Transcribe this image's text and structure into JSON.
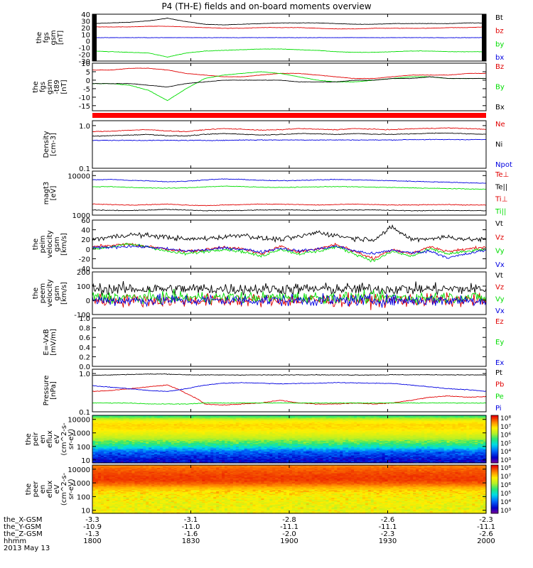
{
  "title": "P4 (TH-E) fields and on-board moments overview",
  "colors": {
    "black": "#000000",
    "red": "#e00000",
    "green": "#00dd00",
    "blue": "#0000e0"
  },
  "chart_data": [
    {
      "type": "line",
      "name": "panel-fgs-gsm",
      "ylabel": [
        "the",
        "fgs",
        "gsm",
        "[nT]"
      ],
      "yticks": [
        "40",
        "30",
        "20",
        "10",
        "0",
        "-10",
        "-20",
        "-30"
      ],
      "ylim": [
        -30,
        40
      ],
      "log": false,
      "series": [
        {
          "name": "Bt",
          "color": "black",
          "values": [
            26,
            27,
            28,
            30,
            34,
            29,
            25,
            24,
            25,
            26,
            27,
            27,
            27,
            26,
            25,
            25,
            26,
            26,
            26,
            26,
            27,
            27
          ]
        },
        {
          "name": "bz",
          "color": "red",
          "values": [
            21,
            21,
            21,
            22,
            22,
            21,
            20,
            19,
            19,
            20,
            20,
            20,
            19,
            18,
            18,
            19,
            19,
            19,
            19,
            20,
            20,
            21
          ]
        },
        {
          "name": "by",
          "color": "green",
          "values": [
            -15,
            -16,
            -17,
            -18,
            -24,
            -18,
            -15,
            -14,
            -13,
            -12,
            -12,
            -13,
            -14,
            -16,
            -17,
            -17,
            -16,
            -15,
            -15,
            -16,
            -16,
            -16
          ]
        },
        {
          "name": "bx",
          "color": "blue",
          "values": [
            5,
            5,
            5,
            5,
            5,
            5,
            5,
            5,
            5,
            5,
            5,
            5,
            5,
            5,
            5,
            5,
            5,
            5,
            5,
            5,
            5,
            5
          ]
        }
      ],
      "legend": [
        "Bt",
        "bz",
        "by",
        "bx"
      ]
    },
    {
      "type": "line",
      "name": "panel-fgs-gsm-t89",
      "ylabel": [
        "the",
        "fgs",
        "gsm",
        "-t89",
        "[nT]"
      ],
      "yticks": [
        "10",
        "5",
        "0",
        "-5",
        "-10",
        "-15"
      ],
      "ylim": [
        -18,
        10
      ],
      "log": false,
      "series": [
        {
          "name": "Bz",
          "color": "red",
          "values": [
            6,
            6,
            7,
            7,
            6,
            4,
            3,
            2,
            2,
            3,
            4,
            4,
            3,
            2,
            1,
            1,
            2,
            3,
            3,
            3,
            4,
            4
          ]
        },
        {
          "name": "By",
          "color": "green",
          "values": [
            -2,
            -2,
            -3,
            -6,
            -12,
            -5,
            1,
            3,
            4,
            5,
            4,
            2,
            0,
            -1,
            -1,
            0,
            1,
            2,
            2,
            1,
            1,
            1
          ]
        },
        {
          "name": "Bx",
          "color": "black",
          "values": [
            -2,
            -2,
            -2,
            -3,
            -4,
            -2,
            -1,
            0,
            0,
            0,
            0,
            -1,
            -1,
            -1,
            0,
            0,
            1,
            1,
            2,
            1,
            1,
            1
          ]
        }
      ],
      "legend": [
        "Bz",
        "By",
        "Bx"
      ]
    },
    {
      "type": "line",
      "name": "panel-density",
      "ylabel": [
        "Density",
        "[cm-3]"
      ],
      "yticks": [
        "1.0",
        "0.1"
      ],
      "ylim": [
        0.1,
        1.3
      ],
      "log": true,
      "series": [
        {
          "name": "Ne",
          "color": "red",
          "values": [
            0.72,
            0.74,
            0.78,
            0.8,
            0.75,
            0.72,
            0.8,
            0.85,
            0.82,
            0.78,
            0.8,
            0.85,
            0.82,
            0.8,
            0.85,
            0.82,
            0.8,
            0.84,
            0.86,
            0.88,
            0.85,
            0.82
          ]
        },
        {
          "name": "Ni",
          "color": "black",
          "values": [
            0.56,
            0.58,
            0.6,
            0.62,
            0.58,
            0.57,
            0.62,
            0.65,
            0.63,
            0.6,
            0.62,
            0.65,
            0.64,
            0.62,
            0.65,
            0.63,
            0.62,
            0.64,
            0.66,
            0.67,
            0.64,
            0.63
          ]
        },
        {
          "name": "Npot",
          "color": "blue",
          "values": [
            0.45,
            0.45,
            0.45,
            0.45,
            0.45,
            0.45,
            0.45,
            0.45,
            0.46,
            0.46,
            0.46,
            0.46,
            0.46,
            0.46,
            0.46,
            0.46,
            0.46,
            0.47,
            0.47,
            0.47,
            0.47,
            0.47
          ]
        }
      ],
      "legend": [
        "Ne",
        "Ni",
        "Npot"
      ]
    },
    {
      "type": "line",
      "name": "panel-temperature",
      "ylabel": [
        "magt3",
        "[eV]"
      ],
      "yticks": [
        "10000",
        "1000"
      ],
      "ylim": [
        1000,
        13000
      ],
      "log": true,
      "series": [
        {
          "name": "Te⊥",
          "color": "red",
          "values": [
            1900,
            1850,
            1800,
            1850,
            1900,
            1800,
            1750,
            1800,
            1850,
            1900,
            1900,
            1850,
            1800,
            1850,
            1900,
            1850,
            1800,
            1800,
            1850,
            1850,
            1800,
            1800
          ]
        },
        {
          "name": "Te||",
          "color": "black",
          "values": [
            1350,
            1320,
            1300,
            1350,
            1400,
            1350,
            1300,
            1300,
            1320,
            1350,
            1360,
            1340,
            1320,
            1340,
            1360,
            1350,
            1320,
            1300,
            1300,
            1320,
            1300,
            1300
          ]
        },
        {
          "name": "Ti⊥",
          "color": "blue",
          "values": [
            7800,
            8000,
            7600,
            7400,
            7000,
            7200,
            7800,
            8200,
            8000,
            7600,
            7400,
            7600,
            7800,
            8000,
            7800,
            7600,
            7400,
            7200,
            7000,
            6800,
            6600,
            6400
          ]
        },
        {
          "name": "Ti||",
          "color": "green",
          "values": [
            5200,
            5300,
            5000,
            4900,
            4800,
            4900,
            5200,
            5400,
            5300,
            5100,
            5000,
            5100,
            5200,
            5300,
            5200,
            5100,
            5000,
            4900,
            4800,
            4700,
            4600,
            4500
          ]
        }
      ],
      "legend": [
        "Te⊥",
        "Te||",
        "Ti⊥",
        "Ti||"
      ],
      "legend_colors": [
        "red",
        "black",
        "red",
        "green"
      ]
    },
    {
      "type": "line",
      "name": "panel-peim-velocity",
      "ylabel": [
        "the",
        "peim",
        "velocity",
        "gsm",
        "[km/s]"
      ],
      "yticks": [
        "60",
        "40",
        "20",
        "0",
        "-20",
        "-40"
      ],
      "ylim": [
        -40,
        60
      ],
      "log": false,
      "series": [
        {
          "name": "Vt",
          "color": "black",
          "values": [
            20,
            25,
            30,
            28,
            25,
            20,
            22,
            25,
            30,
            22,
            20,
            25,
            35,
            28,
            22,
            20,
            45,
            20,
            22,
            25,
            20,
            20
          ]
        },
        {
          "name": "Vz",
          "color": "red",
          "values": [
            5,
            8,
            10,
            5,
            0,
            -5,
            -2,
            5,
            0,
            -10,
            5,
            -5,
            0,
            10,
            -5,
            -20,
            0,
            -10,
            5,
            -5,
            0,
            5
          ]
        },
        {
          "name": "Vy",
          "color": "green",
          "values": [
            0,
            5,
            10,
            5,
            -5,
            -10,
            -5,
            0,
            -5,
            -15,
            0,
            -10,
            -5,
            5,
            -10,
            -25,
            -5,
            -15,
            0,
            -10,
            -5,
            0
          ]
        },
        {
          "name": "Vx",
          "color": "blue",
          "values": [
            2,
            4,
            6,
            4,
            0,
            -4,
            -2,
            2,
            0,
            -6,
            2,
            -4,
            0,
            6,
            -4,
            -10,
            -2,
            -8,
            -4,
            -18,
            -10,
            -2
          ]
        }
      ],
      "noise": [
        5,
        3,
        3,
        3
      ],
      "legend": [
        "Vt",
        "Vz",
        "Vy",
        "Vx"
      ]
    },
    {
      "type": "line",
      "name": "panel-peem-velocity",
      "ylabel": [
        "the",
        "peem",
        "velocity",
        "gsm",
        "[km/s]"
      ],
      "yticks": [
        "200",
        "100",
        "0",
        "-100"
      ],
      "ylim": [
        -100,
        200
      ],
      "log": false,
      "series": [
        {
          "name": "Vt",
          "color": "black",
          "values": [
            80,
            80,
            80,
            80,
            80,
            80,
            80,
            80,
            80,
            80,
            80,
            80,
            80,
            80,
            80,
            80,
            80,
            80,
            80,
            80,
            80,
            80
          ]
        },
        {
          "name": "Vz",
          "color": "red",
          "values": [
            0,
            0,
            0,
            0,
            0,
            0,
            0,
            0,
            0,
            0,
            0,
            0,
            0,
            0,
            0,
            0,
            0,
            0,
            0,
            0,
            0,
            0
          ]
        },
        {
          "name": "Vy",
          "color": "green",
          "values": [
            20,
            20,
            20,
            20,
            20,
            20,
            20,
            20,
            20,
            20,
            20,
            20,
            20,
            20,
            20,
            20,
            20,
            20,
            20,
            20,
            20,
            20
          ]
        },
        {
          "name": "Vx",
          "color": "blue",
          "values": [
            0,
            0,
            0,
            0,
            0,
            0,
            0,
            0,
            0,
            0,
            0,
            0,
            0,
            0,
            0,
            0,
            0,
            0,
            0,
            0,
            0,
            0
          ]
        }
      ],
      "noise": [
        40,
        45,
        40,
        40
      ],
      "legend": [
        "Vt",
        "Vz",
        "Vy",
        "Vx"
      ]
    },
    {
      "type": "line",
      "name": "panel-efield",
      "ylabel": [
        "E=-VxB",
        "[mV/m]"
      ],
      "yticks": [
        "1.0",
        "0.8",
        "0.6",
        "0.4",
        "0.2",
        "0.0"
      ],
      "ylim": [
        0,
        1
      ],
      "log": false,
      "series": [],
      "legend": [
        "Ez",
        "Ey",
        "Ex"
      ],
      "legend_colors": [
        "red",
        "green",
        "blue"
      ]
    },
    {
      "type": "line",
      "name": "panel-pressure",
      "ylabel": [
        "Pressure",
        "[nPa]"
      ],
      "yticks": [
        "1.0",
        "0.1"
      ],
      "ylim": [
        0.1,
        1.3
      ],
      "log": true,
      "series": [
        {
          "name": "Pt",
          "color": "black",
          "values": [
            0.9,
            0.92,
            0.95,
            0.97,
            0.97,
            0.93,
            0.92,
            0.92,
            0.92,
            0.92,
            0.92,
            0.93,
            0.93,
            0.92,
            0.92,
            0.92,
            0.93,
            0.93,
            0.93,
            0.93,
            0.92,
            0.92
          ]
        },
        {
          "name": "Pb",
          "color": "red",
          "values": [
            0.34,
            0.36,
            0.4,
            0.45,
            0.5,
            0.3,
            0.16,
            0.15,
            0.16,
            0.17,
            0.2,
            0.17,
            0.16,
            0.16,
            0.17,
            0.16,
            0.17,
            0.2,
            0.24,
            0.26,
            0.24,
            0.25
          ]
        },
        {
          "name": "Pe",
          "color": "green",
          "values": [
            0.17,
            0.17,
            0.17,
            0.16,
            0.16,
            0.16,
            0.17,
            0.17,
            0.17,
            0.17,
            0.17,
            0.17,
            0.17,
            0.17,
            0.17,
            0.17,
            0.17,
            0.17,
            0.17,
            0.17,
            0.17,
            0.17
          ]
        },
        {
          "name": "Pi",
          "color": "blue",
          "values": [
            0.48,
            0.44,
            0.4,
            0.36,
            0.34,
            0.4,
            0.5,
            0.56,
            0.58,
            0.56,
            0.54,
            0.55,
            0.56,
            0.58,
            0.57,
            0.56,
            0.55,
            0.5,
            0.45,
            0.4,
            0.38,
            0.34
          ]
        }
      ],
      "legend": [
        "Pt",
        "Pb",
        "Pe",
        "Pi"
      ]
    },
    {
      "type": "heatmap",
      "name": "panel-peir-spectrogram",
      "ylabel": [
        "the",
        "peir",
        "en",
        "eflux",
        "eV",
        "(cm^2-s-",
        "sr-eV)"
      ],
      "yticks": [
        "10000",
        "1000",
        "100",
        "10"
      ],
      "ylim": [
        6,
        20000
      ],
      "log": true,
      "zticks": [
        "10⁸",
        "10⁷",
        "10⁶",
        "10⁵",
        "10⁴",
        "10³"
      ],
      "zlim": [
        1000,
        100000000
      ],
      "profile_energy": [
        10,
        20,
        40,
        60,
        100,
        200,
        400,
        1000,
        2000,
        4000,
        8000,
        12000,
        20000
      ],
      "profile_flux": [
        4000,
        8000,
        15000,
        40000,
        150000,
        500000,
        1500000,
        3500000,
        6000000,
        7000000,
        4000000,
        1000000,
        200000
      ]
    },
    {
      "type": "heatmap",
      "name": "panel-peer-spectrogram",
      "ylabel": [
        "the",
        "peer",
        "en",
        "eflux",
        "eV",
        "(cm^2-s-",
        "sr-eV)"
      ],
      "yticks": [
        "10000",
        "1000",
        "100",
        "10"
      ],
      "ylim": [
        6,
        20000
      ],
      "log": true,
      "zticks": [
        "10⁸",
        "10⁷",
        "10⁶",
        "10⁵",
        "10⁴",
        "10³"
      ],
      "zlim": [
        1000,
        100000000
      ],
      "profile_energy": [
        6,
        10,
        20,
        40,
        100,
        200,
        400,
        800,
        1500,
        3000,
        6000,
        12000,
        20000
      ],
      "profile_flux": [
        4000000,
        3500000,
        3500000,
        4000000,
        4500000,
        6000000,
        10000000,
        30000000,
        50000000,
        50000000,
        40000000,
        30000000,
        20000000
      ]
    }
  ],
  "x_axis": {
    "rows": [
      {
        "label": "the_X-GSM",
        "values": [
          "-3.3",
          "-3.1",
          "-2.8",
          "-2.6",
          "-2.3"
        ]
      },
      {
        "label": "the_Y-GSM",
        "values": [
          "-10.9",
          "-11.0",
          "-11.1",
          "-11.1",
          "-11.1"
        ]
      },
      {
        "label": "the_Z-GSM",
        "values": [
          "-1.3",
          "-1.6",
          "-2.0",
          "-2.3",
          "-2.6"
        ]
      },
      {
        "label": "hhmm",
        "values": [
          "1800",
          "1830",
          "1900",
          "1930",
          "2000"
        ]
      }
    ],
    "date": "2013 May 13",
    "xlim": [
      1800,
      2000
    ]
  }
}
